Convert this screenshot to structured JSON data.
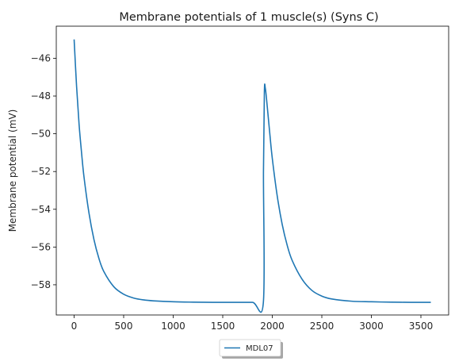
{
  "chart_data": {
    "type": "line",
    "title": "Membrane potentials of 1 muscle(s) (Syns C)",
    "xlabel": "",
    "ylabel": "Membrane potential (mV)",
    "xlim": [
      -180,
      3780
    ],
    "ylim": [
      -59.6,
      -44.3
    ],
    "xticks": [
      0,
      500,
      1000,
      1500,
      2000,
      2500,
      3000,
      3500
    ],
    "yticks": [
      -58,
      -56,
      -54,
      -52,
      -50,
      -48,
      -46
    ],
    "xtick_labels": [
      "0",
      "500",
      "1000",
      "1500",
      "2000",
      "2500",
      "3000",
      "3500"
    ],
    "ytick_labels": [
      "−58",
      "−56",
      "−54",
      "−52",
      "−50",
      "−48",
      "−46"
    ],
    "grid": false,
    "legend_position": "bottom-center",
    "series": [
      {
        "name": "MDL07",
        "color": "#1f77b4",
        "x": [
          0,
          25,
          50,
          75,
          100,
          150,
          200,
          250,
          300,
          400,
          500,
          600,
          700,
          800,
          1000,
          1200,
          1400,
          1600,
          1800,
          1910,
          1911,
          1920,
          1930,
          1950,
          1975,
          2000,
          2050,
          2100,
          2150,
          2200,
          2300,
          2400,
          2500,
          2600,
          2800,
          3000,
          3200,
          3400,
          3600
        ],
        "y": [
          -45.0,
          -47.5,
          -49.5,
          -51.0,
          -52.3,
          -54.2,
          -55.6,
          -56.6,
          -57.3,
          -58.1,
          -58.5,
          -58.7,
          -58.8,
          -58.85,
          -58.9,
          -58.92,
          -58.93,
          -58.93,
          -58.93,
          -58.93,
          -52.0,
          -47.8,
          -47.6,
          -48.6,
          -50.0,
          -51.3,
          -53.3,
          -54.8,
          -55.9,
          -56.7,
          -57.7,
          -58.3,
          -58.6,
          -58.75,
          -58.87,
          -58.9,
          -58.92,
          -58.93,
          -58.93
        ]
      }
    ]
  }
}
